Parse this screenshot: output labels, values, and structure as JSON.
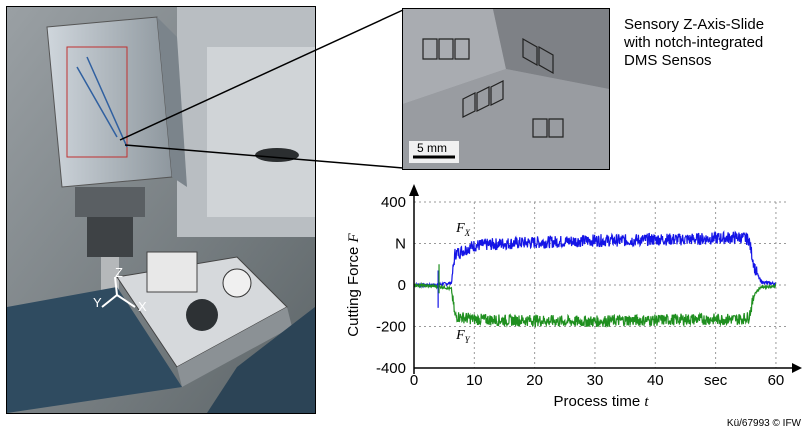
{
  "caption": {
    "lines": [
      "Sensory Z-Axis-Slide",
      "with notch-integrated",
      "DMS Sensos"
    ]
  },
  "photo": {
    "axis_labels": [
      "Z",
      "Y",
      "X"
    ],
    "scale_bar_label": "5 mm"
  },
  "credit": "Kü/67993 © IFW",
  "chart_data": {
    "type": "line",
    "xlabel": "Process time",
    "xlabel_var": "t",
    "ylabel": "Cutting Force",
    "ylabel_var": "F",
    "x_unit": "sec",
    "y_unit": "N",
    "xlim": [
      0,
      62
    ],
    "ylim": [
      -400,
      400
    ],
    "x_ticks": [
      "0",
      "10",
      "20",
      "30",
      "40",
      "",
      "60"
    ],
    "y_ticks": [
      "400",
      "N",
      "0",
      "-200",
      "-400"
    ],
    "grid": true,
    "series": [
      {
        "name": "F_X",
        "label_main": "F",
        "label_sub": "X",
        "color": "#1414e6",
        "x": [
          0,
          3,
          5,
          6.2,
          6.8,
          10,
          15,
          20,
          25,
          30,
          35,
          40,
          45,
          50,
          54,
          55.5,
          56.5,
          57.5,
          60
        ],
        "y": [
          0,
          0,
          5,
          10,
          150,
          190,
          200,
          205,
          210,
          215,
          215,
          220,
          220,
          225,
          230,
          220,
          80,
          15,
          5
        ],
        "band": 30
      },
      {
        "name": "F_Y",
        "label_main": "F",
        "label_sub": "Y",
        "color": "#1f8f1f",
        "x": [
          0,
          3,
          5,
          6.2,
          6.8,
          10,
          15,
          20,
          25,
          30,
          35,
          40,
          45,
          50,
          54,
          55.5,
          56.5,
          57.5,
          60
        ],
        "y": [
          0,
          -5,
          -10,
          -20,
          -150,
          -165,
          -170,
          -170,
          -175,
          -175,
          -170,
          -170,
          -165,
          -165,
          -165,
          -155,
          -40,
          -10,
          -5
        ],
        "band": 28
      }
    ]
  }
}
